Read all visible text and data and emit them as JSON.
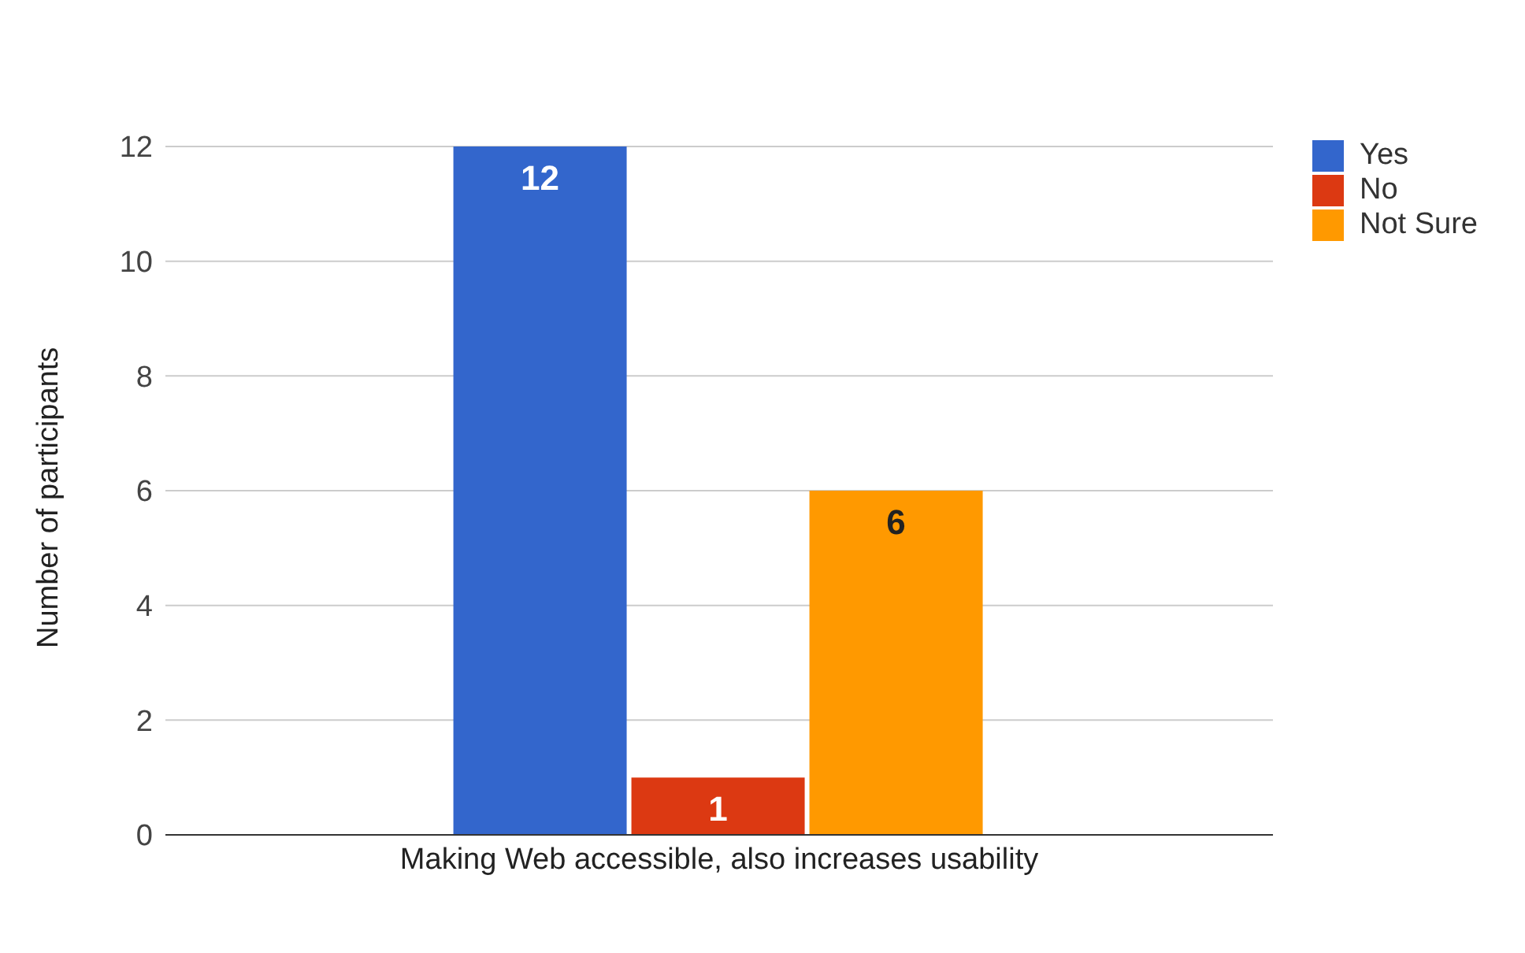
{
  "chart_data": {
    "type": "bar",
    "categories": [
      "Making Web accessible, also increases usability"
    ],
    "ylabel": "Number of participants",
    "series": [
      {
        "name": "Yes",
        "color": "#3366cc",
        "values": [
          12
        ]
      },
      {
        "name": "No",
        "color": "#dc3912",
        "values": [
          1
        ]
      },
      {
        "name": "Not Sure",
        "color": "#ff9900",
        "values": [
          6
        ]
      }
    ],
    "ylim": [
      0,
      12
    ],
    "yticks": [
      0,
      2,
      4,
      6,
      8,
      10,
      12
    ],
    "grid": "y",
    "legend": "top right",
    "data_labels": true
  }
}
